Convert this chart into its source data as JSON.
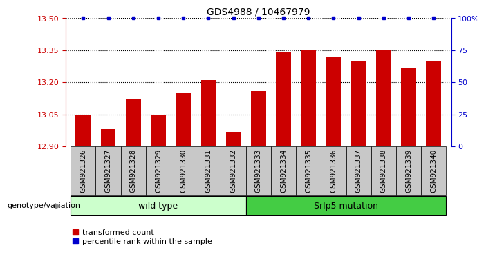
{
  "title": "GDS4988 / 10467979",
  "samples": [
    "GSM921326",
    "GSM921327",
    "GSM921328",
    "GSM921329",
    "GSM921330",
    "GSM921331",
    "GSM921332",
    "GSM921333",
    "GSM921334",
    "GSM921335",
    "GSM921336",
    "GSM921337",
    "GSM921338",
    "GSM921339",
    "GSM921340"
  ],
  "red_values": [
    13.05,
    12.98,
    13.12,
    13.05,
    13.15,
    13.21,
    12.97,
    13.16,
    13.34,
    13.35,
    13.32,
    13.3,
    13.35,
    13.27,
    13.3
  ],
  "ymin": 12.9,
  "ymax": 13.5,
  "yticks": [
    12.9,
    13.05,
    13.2,
    13.35,
    13.5
  ],
  "right_yticks": [
    0,
    25,
    50,
    75,
    100
  ],
  "right_yticklabels": [
    "0",
    "25",
    "50",
    "75",
    "100%"
  ],
  "bar_color": "#cc0000",
  "dot_color": "#0000cc",
  "wild_type_color": "#ccffcc",
  "mutation_color": "#44cc44",
  "wild_type_label": "wild type",
  "mutation_label": "Srlp5 mutation",
  "wild_type_indices": [
    0,
    1,
    2,
    3,
    4,
    5,
    6
  ],
  "mutation_indices": [
    7,
    8,
    9,
    10,
    11,
    12,
    13,
    14
  ],
  "legend_red_label": "transformed count",
  "legend_blue_label": "percentile rank within the sample",
  "genotype_label": "genotype/variation",
  "sample_box_color": "#c8c8c8",
  "title_fontsize": 10,
  "tick_fontsize": 7.5,
  "legend_fontsize": 8
}
